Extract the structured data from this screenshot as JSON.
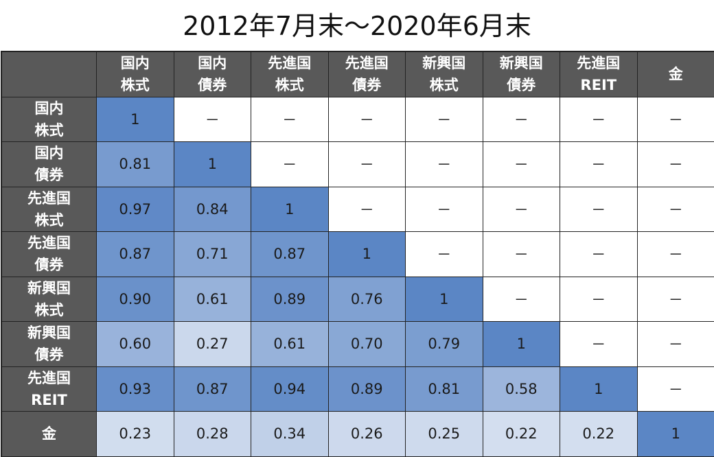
{
  "chart_data": {
    "type": "heatmap",
    "title": "2012年7月末～2020年6月末",
    "columns": [
      "国内\n株式",
      "国内\n債券",
      "先進国\n株式",
      "先進国\n債券",
      "新興国\n株式",
      "新興国\n債券",
      "先進国\nREIT",
      "金"
    ],
    "rows": [
      "国内\n株式",
      "国内\n債券",
      "先進国\n株式",
      "先進国\n債券",
      "新興国\n株式",
      "新興国\n債券",
      "先進国\nREIT",
      "金"
    ],
    "values": [
      [
        "1",
        "－",
        "－",
        "－",
        "－",
        "－",
        "－",
        "－"
      ],
      [
        "0.81",
        "1",
        "－",
        "－",
        "－",
        "－",
        "－",
        "－"
      ],
      [
        "0.97",
        "0.84",
        "1",
        "－",
        "－",
        "－",
        "－",
        "－"
      ],
      [
        "0.87",
        "0.71",
        "0.87",
        "1",
        "－",
        "－",
        "－",
        "－"
      ],
      [
        "0.90",
        "0.61",
        "0.89",
        "0.76",
        "1",
        "－",
        "－",
        "－"
      ],
      [
        "0.60",
        "0.27",
        "0.61",
        "0.70",
        "0.79",
        "1",
        "－",
        "－"
      ],
      [
        "0.93",
        "0.87",
        "0.94",
        "0.89",
        "0.81",
        "0.58",
        "1",
        "－"
      ],
      [
        "0.23",
        "0.28",
        "0.34",
        "0.26",
        "0.25",
        "0.22",
        "0.22",
        "1"
      ]
    ],
    "color_low": "#d6e0f0",
    "color_high": "#5b86c5",
    "header_color": "#595959",
    "header_text_color": "#ffffff"
  }
}
